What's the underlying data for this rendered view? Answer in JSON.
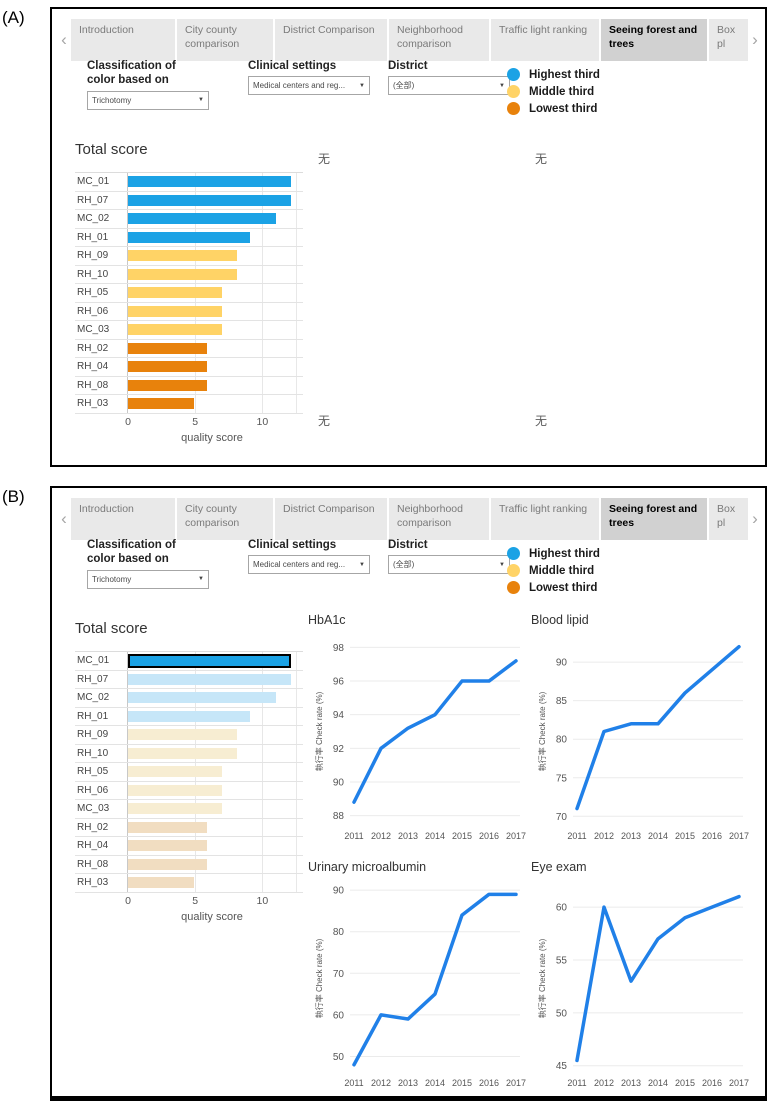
{
  "panel_labels": {
    "a": "(A)",
    "b": "(B)"
  },
  "colors": {
    "highest": "#1BA2E5",
    "middle": "#FFD366",
    "lowest": "#E8820C",
    "highest_faded": "#C6E6F8",
    "middle_faded": "#F7EDD2",
    "lowest_faded": "#F1DDC1",
    "line": "#2080E8",
    "selected_border": "#000000"
  },
  "tabs": {
    "prev_arrow": "‹",
    "next_arrow": "›",
    "selected": "Seeing forest and trees",
    "items": [
      "Introduction",
      "City county comparison",
      "District Comparison",
      "Neighborhood comparison",
      "Traffic light ranking",
      "Seeing forest and trees",
      "Box pl"
    ]
  },
  "filters": {
    "classification": {
      "label": "Classification of color based on",
      "value": "Trichotomy"
    },
    "clinical": {
      "label": "Clinical settings",
      "value": "Medical centers and reg..."
    },
    "district": {
      "label": "District",
      "value": "(全部)"
    }
  },
  "legend": {
    "items": [
      {
        "label": "Highest third",
        "color": "#1BA2E5"
      },
      {
        "label": "Middle third",
        "color": "#FFD366"
      },
      {
        "label": "Lowest third",
        "color": "#E8820C"
      }
    ]
  },
  "empty_marker": "无",
  "chart_data": [
    {
      "panel": "A",
      "type": "bar",
      "title": "Total score",
      "xlabel": "quality score",
      "xticks": [
        0,
        5,
        10
      ],
      "xlim": [
        0,
        12.5
      ],
      "categories": [
        "MC_01",
        "RH_07",
        "MC_02",
        "RH_01",
        "RH_09",
        "RH_10",
        "RH_05",
        "RH_06",
        "MC_03",
        "RH_02",
        "RH_04",
        "RH_08",
        "RH_03"
      ],
      "values": [
        12.1,
        12.1,
        11.0,
        9.1,
        8.1,
        8.1,
        7.0,
        7.0,
        7.0,
        5.9,
        5.9,
        5.9,
        4.9
      ],
      "groups": [
        "highest",
        "highest",
        "highest",
        "highest",
        "middle",
        "middle",
        "middle",
        "middle",
        "middle",
        "lowest",
        "lowest",
        "lowest",
        "lowest"
      ],
      "faded": false
    },
    {
      "panel": "B",
      "type": "bar",
      "title": "Total score",
      "xlabel": "quality score",
      "xticks": [
        0,
        5,
        10
      ],
      "xlim": [
        0,
        12.5
      ],
      "categories": [
        "MC_01",
        "RH_07",
        "MC_02",
        "RH_01",
        "RH_09",
        "RH_10",
        "RH_05",
        "RH_06",
        "MC_03",
        "RH_02",
        "RH_04",
        "RH_08",
        "RH_03"
      ],
      "values": [
        12.1,
        12.1,
        11.0,
        9.1,
        8.1,
        8.1,
        7.0,
        7.0,
        7.0,
        5.9,
        5.9,
        5.9,
        4.9
      ],
      "groups": [
        "highest",
        "highest",
        "highest",
        "highest",
        "middle",
        "middle",
        "middle",
        "middle",
        "middle",
        "lowest",
        "lowest",
        "lowest",
        "lowest"
      ],
      "faded": true,
      "highlighted": "MC_01"
    },
    {
      "panel": "B",
      "type": "line",
      "title": "HbA1c",
      "ylabel": "執行率 Check rate (%)",
      "x": [
        "2011",
        "2012",
        "2013",
        "2014",
        "2015",
        "2016",
        "2017"
      ],
      "values": [
        88.8,
        92,
        93.2,
        94,
        96,
        96,
        97.2
      ],
      "yticks": [
        88,
        90,
        92,
        94,
        96,
        98
      ],
      "ylim": [
        87.5,
        98.5
      ]
    },
    {
      "panel": "B",
      "type": "line",
      "title": "Blood lipid",
      "ylabel": "執行率 Check rate (%)",
      "x": [
        "2011",
        "2012",
        "2013",
        "2014",
        "2015",
        "2016",
        "2017"
      ],
      "values": [
        71,
        81,
        82,
        82,
        86,
        89,
        92
      ],
      "yticks": [
        70,
        75,
        80,
        85,
        90
      ],
      "ylim": [
        69,
        93
      ]
    },
    {
      "panel": "B",
      "type": "line",
      "title": "Urinary microalbumin",
      "ylabel": "執行率 Check rate (%)",
      "x": [
        "2011",
        "2012",
        "2013",
        "2014",
        "2015",
        "2016",
        "2017"
      ],
      "values": [
        48,
        60,
        59,
        65,
        84,
        89,
        89
      ],
      "yticks": [
        50,
        60,
        70,
        80,
        90
      ],
      "ylim": [
        46.5,
        91
      ]
    },
    {
      "panel": "B",
      "type": "line",
      "title": "Eye exam",
      "ylabel": "執行率 Check rate (%)",
      "x": [
        "2011",
        "2012",
        "2013",
        "2014",
        "2015",
        "2016",
        "2017"
      ],
      "values": [
        45.5,
        60,
        53,
        57,
        59,
        60,
        61
      ],
      "yticks": [
        45,
        50,
        55,
        60
      ],
      "ylim": [
        44.5,
        62
      ]
    }
  ]
}
